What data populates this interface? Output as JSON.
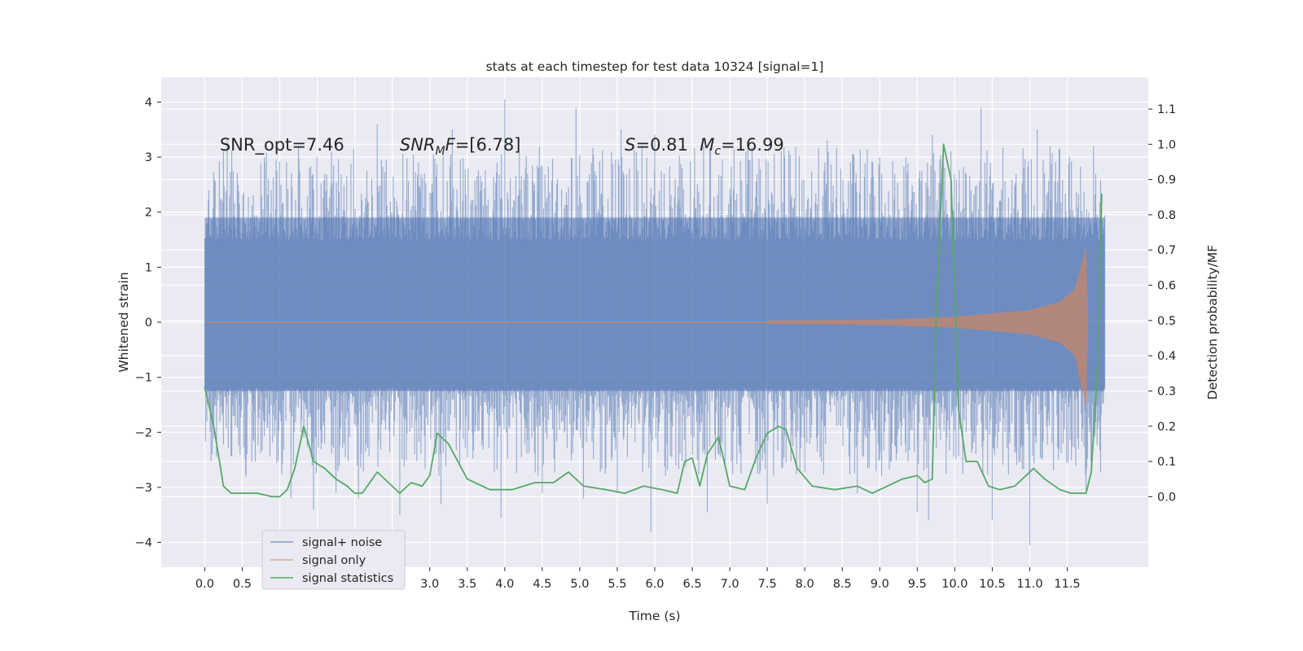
{
  "chart_data": {
    "type": "line",
    "title": "stats at each timestep for test data 10324 [signal=1]",
    "xlabel": "Time (s)",
    "ylabel": "Whitened strain",
    "y2label": "Detection probability/MF",
    "xlim": [
      -0.58,
      12.58
    ],
    "ylim": [
      -4.45,
      4.45
    ],
    "y2lim": [
      -0.2,
      1.19
    ],
    "x_ticks": [
      0.0,
      0.5,
      1.0,
      1.5,
      2.0,
      2.5,
      3.0,
      3.5,
      4.0,
      4.5,
      5.0,
      5.5,
      6.0,
      6.5,
      7.0,
      7.5,
      8.0,
      8.5,
      9.0,
      9.5,
      10.0,
      10.5,
      11.0,
      11.5
    ],
    "x_tick_labels": [
      "0.0",
      "0.5",
      "1.0",
      "1.5",
      "2.0",
      "2.5",
      "3.0",
      "3.5",
      "4.0",
      "4.5",
      "5.0",
      "5.5",
      "6.0",
      "6.5",
      "7.0",
      "7.5",
      "8.0",
      "8.5",
      "9.0",
      "9.5",
      "10.0",
      "10.5",
      "11.0",
      "11.5"
    ],
    "y_ticks": [
      4,
      3,
      2,
      1,
      0,
      -1,
      -2,
      -3,
      -4
    ],
    "y_tick_labels": [
      "4",
      "3",
      "2",
      "1",
      "0",
      "−1",
      "−2",
      "−3",
      "−4"
    ],
    "y2_ticks": [
      1.1,
      1.0,
      0.9,
      0.8,
      0.7,
      0.6,
      0.5,
      0.4,
      0.3,
      0.2,
      0.1,
      0.0
    ],
    "y2_tick_labels": [
      "1.1",
      "1.0",
      "0.9",
      "0.8",
      "0.7",
      "0.6",
      "0.5",
      "0.4",
      "0.3",
      "0.2",
      "0.1",
      "0.0"
    ],
    "grid": true,
    "legend_position": "lower-left",
    "background_color": "#eaeaf2",
    "annotations": [
      {
        "text": "SNR_opt=7.46",
        "x": 0.2
      },
      {
        "text": "SNR_MF=[6.78]",
        "x": 2.6
      },
      {
        "text": "S=0.81",
        "x": 5.6
      },
      {
        "text": "M_c=16.99",
        "x": 6.6
      }
    ],
    "series": [
      {
        "name": "signal+ noise",
        "color": "#4c72b0",
        "axis": "left",
        "style": "noise-band",
        "x_range": [
          0.0,
          12.0
        ],
        "core_band": [
          -1.25,
          1.9
        ],
        "spike_peaks_upper": [
          [
            0.05,
            2.2
          ],
          [
            0.3,
            3.3
          ],
          [
            0.8,
            2.9
          ],
          [
            1.25,
            3.2
          ],
          [
            1.6,
            2.7
          ],
          [
            2.3,
            3.6
          ],
          [
            2.85,
            2.9
          ],
          [
            3.3,
            3.5
          ],
          [
            4.0,
            4.05
          ],
          [
            4.45,
            2.8
          ],
          [
            4.95,
            3.9
          ],
          [
            5.55,
            3.5
          ],
          [
            6.0,
            3.4
          ],
          [
            6.65,
            3.2
          ],
          [
            7.3,
            3.0
          ],
          [
            8.3,
            3.3
          ],
          [
            9.0,
            3.0
          ],
          [
            9.7,
            3.4
          ],
          [
            10.35,
            3.9
          ],
          [
            11.1,
            3.5
          ],
          [
            11.85,
            3.2
          ]
        ],
        "spike_peaks_lower": [
          [
            0.1,
            -2.4
          ],
          [
            0.55,
            -2.8
          ],
          [
            1.15,
            -3.2
          ],
          [
            1.45,
            -3.4
          ],
          [
            1.75,
            -3.1
          ],
          [
            2.05,
            -3.2
          ],
          [
            2.6,
            -3.5
          ],
          [
            3.15,
            -3.3
          ],
          [
            3.95,
            -3.55
          ],
          [
            4.5,
            -3.1
          ],
          [
            5.05,
            -3.2
          ],
          [
            5.5,
            -3.1
          ],
          [
            5.95,
            -3.8
          ],
          [
            6.7,
            -3.45
          ],
          [
            7.5,
            -3.3
          ],
          [
            8.7,
            -3.1
          ],
          [
            9.5,
            -3.45
          ],
          [
            9.65,
            -3.6
          ],
          [
            10.5,
            -3.6
          ],
          [
            11.0,
            -4.05
          ],
          [
            11.75,
            -3.05
          ]
        ]
      },
      {
        "name": "signal only",
        "color": "#dd8452",
        "axis": "left",
        "style": "chirp",
        "x_range": [
          7.5,
          11.78
        ],
        "envelope": [
          [
            7.5,
            0.03
          ],
          [
            9.0,
            0.05
          ],
          [
            10.0,
            0.1
          ],
          [
            11.0,
            0.22
          ],
          [
            11.4,
            0.37
          ],
          [
            11.6,
            0.6
          ],
          [
            11.75,
            1.35
          ],
          [
            11.78,
            0.0
          ]
        ],
        "envelope_lower": [
          [
            7.5,
            -0.03
          ],
          [
            9.0,
            -0.05
          ],
          [
            10.0,
            -0.1
          ],
          [
            11.0,
            -0.22
          ],
          [
            11.4,
            -0.37
          ],
          [
            11.6,
            -0.6
          ],
          [
            11.75,
            -1.55
          ],
          [
            11.78,
            0.0
          ]
        ]
      },
      {
        "name": "signal statistics",
        "color": "#55a868",
        "axis": "right",
        "style": "line",
        "x": [
          0.0,
          0.12,
          0.25,
          0.35,
          0.5,
          0.7,
          0.9,
          1.0,
          1.1,
          1.2,
          1.32,
          1.45,
          1.6,
          1.75,
          1.9,
          2.0,
          2.1,
          2.2,
          2.3,
          2.45,
          2.6,
          2.75,
          2.9,
          3.0,
          3.1,
          3.25,
          3.5,
          3.8,
          4.1,
          4.4,
          4.65,
          4.85,
          5.05,
          5.35,
          5.6,
          5.85,
          6.1,
          6.3,
          6.4,
          6.5,
          6.6,
          6.7,
          6.85,
          7.0,
          7.2,
          7.35,
          7.5,
          7.65,
          7.75,
          7.9,
          8.1,
          8.4,
          8.7,
          8.9,
          9.1,
          9.3,
          9.5,
          9.6,
          9.7,
          9.75,
          9.85,
          9.95,
          10.05,
          10.15,
          10.3,
          10.45,
          10.6,
          10.8,
          10.95,
          11.05,
          11.2,
          11.4,
          11.55,
          11.65,
          11.75,
          11.82,
          11.9,
          11.96
        ],
        "values": [
          0.31,
          0.2,
          0.03,
          0.01,
          0.01,
          0.01,
          0.0,
          0.0,
          0.02,
          0.08,
          0.2,
          0.1,
          0.08,
          0.05,
          0.03,
          0.01,
          0.01,
          0.04,
          0.07,
          0.04,
          0.01,
          0.04,
          0.03,
          0.06,
          0.18,
          0.15,
          0.05,
          0.02,
          0.02,
          0.04,
          0.04,
          0.07,
          0.03,
          0.02,
          0.01,
          0.03,
          0.02,
          0.01,
          0.1,
          0.11,
          0.03,
          0.12,
          0.17,
          0.03,
          0.02,
          0.11,
          0.18,
          0.2,
          0.19,
          0.08,
          0.03,
          0.02,
          0.03,
          0.01,
          0.03,
          0.05,
          0.06,
          0.04,
          0.05,
          0.5,
          1.0,
          0.9,
          0.25,
          0.1,
          0.1,
          0.03,
          0.02,
          0.03,
          0.06,
          0.08,
          0.05,
          0.02,
          0.01,
          0.01,
          0.01,
          0.07,
          0.35,
          0.86
        ]
      }
    ]
  }
}
